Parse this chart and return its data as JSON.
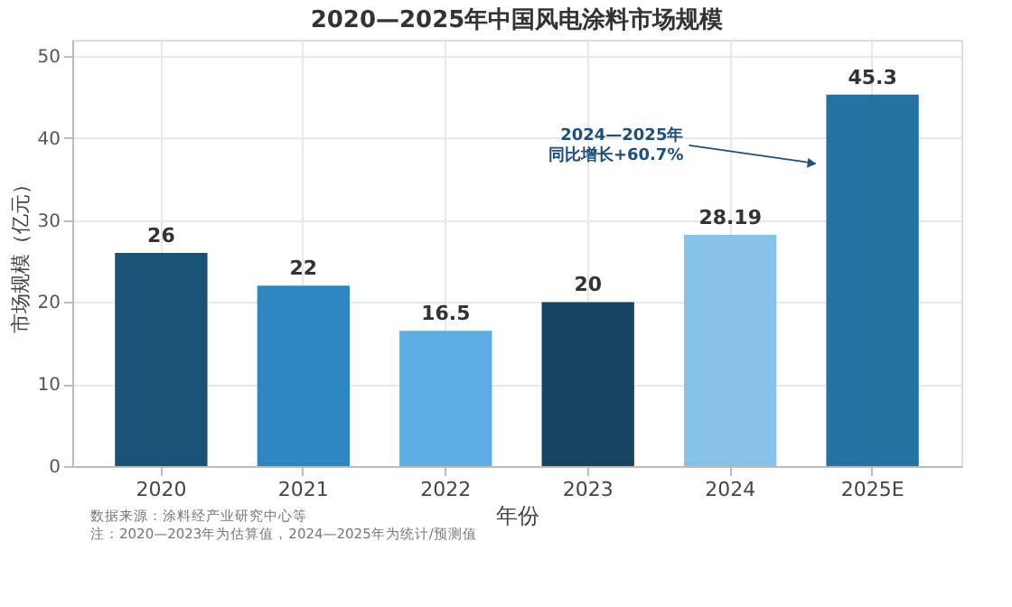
{
  "chart_data": {
    "type": "bar",
    "title": "2020—2025年中国风电涂料市场规模",
    "xlabel": "年份",
    "ylabel": "市场规模（亿元）",
    "categories": [
      "2020",
      "2021",
      "2022",
      "2023",
      "2024",
      "2025E"
    ],
    "values": [
      26,
      22,
      16.5,
      20,
      28.19,
      45.3
    ],
    "colors": [
      "#1a5276",
      "#2e86c1",
      "#5dade2",
      "#154360",
      "#85c1e9",
      "#2471a3"
    ],
    "ylim": [
      0,
      52
    ],
    "yticks": [
      0,
      10,
      20,
      30,
      40,
      50
    ],
    "grid": true,
    "data_labels": true,
    "annotations": [
      "2024—2025年",
      "同比增长+60.7%",
      "数据来源：涂料经产业研究中心等",
      "注：2020—2023年为估算值，2024—2025年为统计/预测值"
    ]
  }
}
